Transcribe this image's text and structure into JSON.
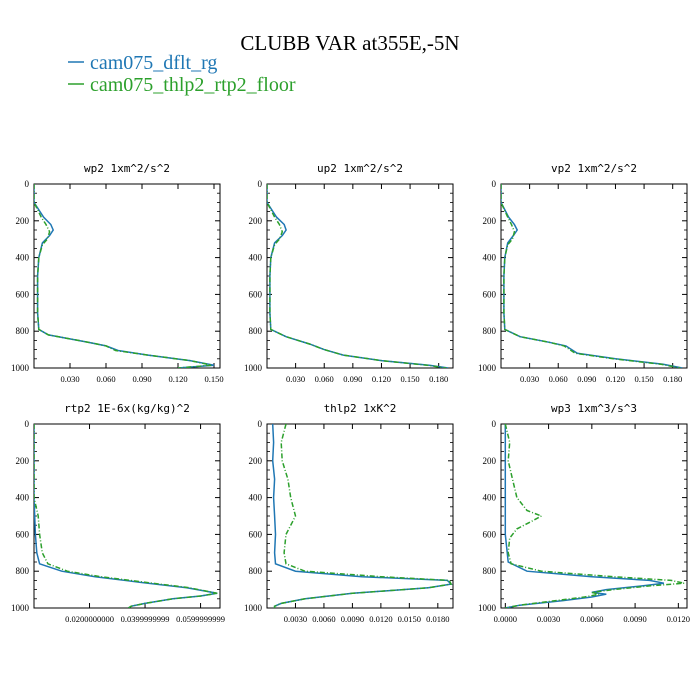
{
  "figure": {
    "title": "CLUBB VAR at355E,-5N",
    "legend": [
      {
        "name": "cam075_dflt_rg",
        "color": "#1f77b4"
      },
      {
        "name": "cam075_thlp2_rtp2_floor",
        "color": "#2ca02c"
      }
    ]
  },
  "chart_data": [
    {
      "type": "line",
      "title": "wp2   1xm^2/s^2",
      "xticks": [
        "0.030",
        "0.060",
        "0.090",
        "0.120",
        "0.150"
      ],
      "xlim": [
        0.0,
        0.155
      ],
      "ylim": [
        1000,
        0
      ],
      "yticks": [
        "0",
        "200",
        "400",
        "600",
        "800",
        "1000"
      ],
      "series": [
        {
          "name": "cam075_dflt_rg",
          "color": "#1f77b4",
          "y": [
            0,
            100,
            180,
            220,
            250,
            280,
            320,
            400,
            500,
            600,
            700,
            790,
            820,
            860,
            880,
            905,
            930,
            960,
            985,
            1000
          ],
          "x": [
            0.0,
            0.0,
            0.008,
            0.014,
            0.016,
            0.013,
            0.007,
            0.004,
            0.003,
            0.003,
            0.003,
            0.004,
            0.012,
            0.045,
            0.06,
            0.07,
            0.095,
            0.13,
            0.15,
            0.12
          ]
        },
        {
          "name": "cam075_thlp2_rtp2_floor",
          "color": "#2ca02c",
          "y": [
            0,
            100,
            180,
            220,
            260,
            300,
            330,
            400,
            500,
            600,
            700,
            790,
            820,
            860,
            880,
            905,
            930,
            960,
            985,
            1000
          ],
          "x": [
            0.0,
            0.0,
            0.006,
            0.01,
            0.013,
            0.011,
            0.007,
            0.004,
            0.003,
            0.003,
            0.003,
            0.004,
            0.012,
            0.045,
            0.06,
            0.068,
            0.095,
            0.13,
            0.148,
            0.12
          ]
        }
      ]
    },
    {
      "type": "line",
      "title": "up2   1xm^2/s^2",
      "xticks": [
        "0.030",
        "0.060",
        "0.090",
        "0.120",
        "0.150",
        "0.180"
      ],
      "xlim": [
        0.0,
        0.195
      ],
      "ylim": [
        1000,
        0
      ],
      "yticks": [
        "0",
        "200",
        "400",
        "600",
        "800",
        "1000"
      ],
      "series": [
        {
          "name": "cam075_dflt_rg",
          "color": "#1f77b4",
          "y": [
            0,
            100,
            180,
            220,
            250,
            280,
            320,
            400,
            500,
            600,
            700,
            790,
            830,
            870,
            900,
            930,
            960,
            985,
            1000
          ],
          "x": [
            0.0,
            0.0,
            0.01,
            0.018,
            0.02,
            0.016,
            0.008,
            0.004,
            0.003,
            0.003,
            0.003,
            0.004,
            0.02,
            0.045,
            0.06,
            0.08,
            0.12,
            0.17,
            0.19
          ]
        },
        {
          "name": "cam075_thlp2_rtp2_floor",
          "color": "#2ca02c",
          "y": [
            0,
            100,
            180,
            220,
            260,
            300,
            330,
            400,
            500,
            600,
            700,
            790,
            830,
            870,
            900,
            930,
            960,
            985,
            1000
          ],
          "x": [
            0.0,
            0.0,
            0.008,
            0.013,
            0.016,
            0.013,
            0.008,
            0.004,
            0.003,
            0.003,
            0.003,
            0.004,
            0.02,
            0.045,
            0.06,
            0.08,
            0.12,
            0.168,
            0.188
          ]
        }
      ]
    },
    {
      "type": "line",
      "title": "vp2   1xm^2/s^2",
      "xticks": [
        "0.030",
        "0.060",
        "0.090",
        "0.120",
        "0.150",
        "0.180"
      ],
      "xlim": [
        0.0,
        0.195
      ],
      "ylim": [
        1000,
        0
      ],
      "yticks": [
        "0",
        "200",
        "400",
        "600",
        "800",
        "1000"
      ],
      "series": [
        {
          "name": "cam075_dflt_rg",
          "color": "#1f77b4",
          "y": [
            0,
            100,
            180,
            220,
            250,
            280,
            320,
            400,
            500,
            600,
            700,
            790,
            830,
            860,
            880,
            920,
            950,
            980,
            1000
          ],
          "x": [
            0.0,
            0.0,
            0.008,
            0.014,
            0.017,
            0.013,
            0.007,
            0.004,
            0.003,
            0.003,
            0.003,
            0.004,
            0.02,
            0.05,
            0.068,
            0.08,
            0.12,
            0.17,
            0.19
          ]
        },
        {
          "name": "cam075_thlp2_rtp2_floor",
          "color": "#2ca02c",
          "y": [
            0,
            100,
            180,
            220,
            260,
            300,
            330,
            400,
            500,
            600,
            700,
            790,
            830,
            860,
            880,
            920,
            950,
            980,
            1000
          ],
          "x": [
            0.0,
            0.0,
            0.007,
            0.011,
            0.014,
            0.012,
            0.007,
            0.004,
            0.003,
            0.003,
            0.003,
            0.004,
            0.02,
            0.05,
            0.066,
            0.078,
            0.118,
            0.168,
            0.188
          ]
        }
      ]
    },
    {
      "type": "line",
      "title": "rtp2   1E-6x(kg/kg)^2",
      "xticks": [
        "0.0200000000",
        "0.0399999999",
        "0.0599999999"
      ],
      "xlim": [
        0.0,
        0.067
      ],
      "ylim": [
        1000,
        0
      ],
      "yticks": [
        "0",
        "200",
        "400",
        "600",
        "800",
        "1000"
      ],
      "series": [
        {
          "name": "cam075_dflt_rg",
          "color": "#1f77b4",
          "y": [
            0,
            200,
            400,
            600,
            700,
            760,
            800,
            830,
            860,
            890,
            920,
            935,
            950,
            975,
            990,
            1000
          ],
          "x": [
            0.0,
            0.0,
            0.0,
            0.0005,
            0.001,
            0.002,
            0.01,
            0.022,
            0.038,
            0.055,
            0.066,
            0.06,
            0.05,
            0.04,
            0.035,
            0.034
          ]
        },
        {
          "name": "cam075_thlp2_rtp2_floor",
          "color": "#2ca02c",
          "y": [
            0,
            200,
            400,
            500,
            600,
            700,
            760,
            800,
            830,
            860,
            890,
            920,
            935,
            950,
            975,
            990,
            1000
          ],
          "x": [
            0.0,
            0.0,
            0.0,
            0.0015,
            0.002,
            0.003,
            0.005,
            0.012,
            0.024,
            0.04,
            0.056,
            0.066,
            0.06,
            0.05,
            0.04,
            0.035,
            0.034
          ]
        }
      ]
    },
    {
      "type": "line",
      "title": "thlp2   1xK^2",
      "xticks": [
        "0.0030",
        "0.0060",
        "0.0090",
        "0.0120",
        "0.0150",
        "0.0180"
      ],
      "xlim": [
        0.0,
        0.0196
      ],
      "ylim": [
        1000,
        0
      ],
      "yticks": [
        "0",
        "200",
        "400",
        "600",
        "800",
        "1000"
      ],
      "series": [
        {
          "name": "cam075_dflt_rg",
          "color": "#1f77b4",
          "y": [
            0,
            100,
            200,
            300,
            400,
            500,
            600,
            700,
            760,
            800,
            830,
            850,
            870,
            890,
            920,
            950,
            975,
            990,
            1000
          ],
          "x": [
            0.0006,
            0.0007,
            0.0006,
            0.0008,
            0.0007,
            0.0008,
            0.0009,
            0.0008,
            0.0009,
            0.003,
            0.01,
            0.019,
            0.0194,
            0.017,
            0.009,
            0.004,
            0.0015,
            0.0008,
            0.0008
          ]
        },
        {
          "name": "cam075_thlp2_rtp2_floor",
          "color": "#2ca02c",
          "y": [
            0,
            100,
            200,
            300,
            400,
            500,
            600,
            700,
            760,
            800,
            830,
            850,
            870,
            890,
            920,
            950,
            975,
            990,
            1000
          ],
          "x": [
            0.002,
            0.0015,
            0.0016,
            0.0022,
            0.0025,
            0.003,
            0.002,
            0.0018,
            0.002,
            0.004,
            0.012,
            0.0192,
            0.0194,
            0.017,
            0.009,
            0.004,
            0.0015,
            0.0008,
            0.0008
          ]
        }
      ]
    },
    {
      "type": "line",
      "title": "wp3   1xm^3/s^3",
      "xticks": [
        "0.0000",
        "0.0030",
        "0.0060",
        "0.0090",
        "0.0120"
      ],
      "xlim": [
        -0.0003,
        0.0126
      ],
      "ylim": [
        1000,
        0
      ],
      "yticks": [
        "0",
        "200",
        "400",
        "600",
        "800",
        "1000"
      ],
      "series": [
        {
          "name": "cam075_dflt_rg",
          "color": "#1f77b4",
          "y": [
            0,
            200,
            400,
            600,
            750,
            800,
            830,
            850,
            865,
            880,
            900,
            915,
            925,
            940,
            960,
            985,
            1000
          ],
          "x": [
            0.0,
            0.0,
            0.0,
            0.0,
            0.0002,
            0.0015,
            0.006,
            0.01,
            0.011,
            0.0095,
            0.007,
            0.006,
            0.007,
            0.006,
            0.004,
            0.001,
            0.0
          ]
        },
        {
          "name": "cam075_thlp2_rtp2_floor",
          "color": "#2ca02c",
          "y": [
            0,
            100,
            200,
            300,
            400,
            470,
            500,
            530,
            570,
            620,
            700,
            760,
            800,
            830,
            850,
            865,
            880,
            900,
            915,
            925,
            940,
            960,
            985,
            1000
          ],
          "x": [
            0.0,
            0.0003,
            0.0002,
            0.0005,
            0.0008,
            0.0015,
            0.0025,
            0.0018,
            0.0008,
            0.0003,
            0.0002,
            0.0004,
            0.0025,
            0.0075,
            0.0115,
            0.0124,
            0.01,
            0.0075,
            0.006,
            0.0065,
            0.0055,
            0.0035,
            0.001,
            0.0
          ]
        }
      ]
    }
  ]
}
